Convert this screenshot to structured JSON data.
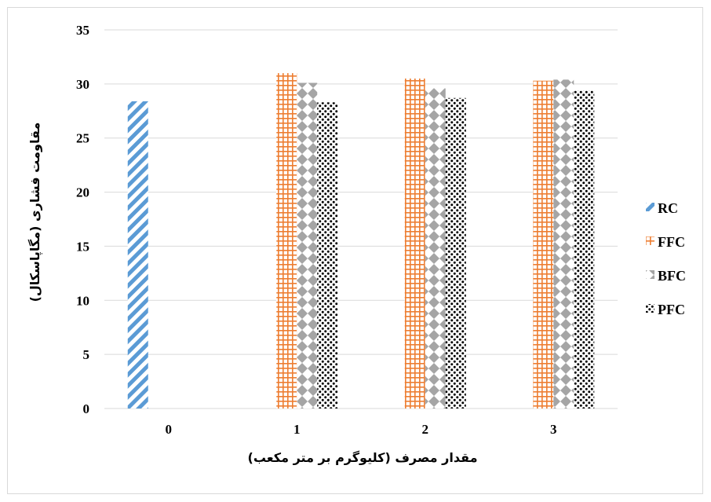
{
  "chart_data": {
    "type": "bar",
    "categories": [
      "0",
      "1",
      "2",
      "3"
    ],
    "series": [
      {
        "name": "RC",
        "values": [
          28.4,
          null,
          null,
          null
        ],
        "color": "#5b9bd5",
        "pattern": "diagonal-stripes"
      },
      {
        "name": "FFC",
        "values": [
          null,
          31.0,
          30.5,
          30.3
        ],
        "color": "#ed7d31",
        "pattern": "grid"
      },
      {
        "name": "BFC",
        "values": [
          null,
          30.1,
          29.6,
          30.4
        ],
        "color": "#a5a5a5",
        "pattern": "diamonds"
      },
      {
        "name": "PFC",
        "values": [
          null,
          28.3,
          28.7,
          29.4
        ],
        "color": "#000000",
        "pattern": "dots"
      }
    ],
    "title": "",
    "xlabel": "مقدار مصرف (کلیوگرم بر متر مکعب)",
    "ylabel": "مقاومت فشاری (مگاپاسکال)",
    "ylim": [
      0,
      35
    ],
    "yticks": [
      "0",
      "5",
      "10",
      "15",
      "20",
      "25",
      "30",
      "35"
    ],
    "grid": true,
    "legend": "right"
  }
}
